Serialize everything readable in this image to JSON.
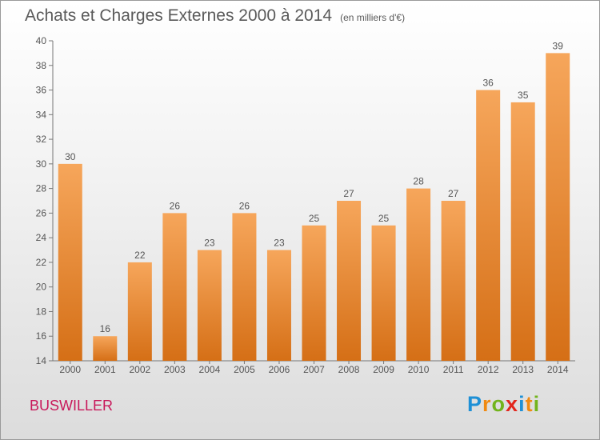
{
  "title": "Achats et Charges Externes 2000 à 2014",
  "subtitle": "(en milliers d'€)",
  "commune": "BUSWILLER",
  "logo": {
    "letters": [
      "P",
      "r",
      "o",
      "x",
      "i",
      "t",
      "i"
    ],
    "colors": [
      "#1e90d6",
      "#f08a12",
      "#72b41c",
      "#e2261c",
      "#1e90d6",
      "#f08a12",
      "#72b41c"
    ]
  },
  "colors": {
    "bar_light": "#f6a65b",
    "bar_dark": "#d56f16",
    "text": "#555555"
  },
  "chart_data": {
    "type": "bar",
    "title": "Achats et Charges Externes 2000 à 2014",
    "subtitle": "(en milliers d'€)",
    "categories": [
      "2000",
      "2001",
      "2002",
      "2003",
      "2004",
      "2005",
      "2006",
      "2007",
      "2008",
      "2009",
      "2010",
      "2011",
      "2012",
      "2013",
      "2014"
    ],
    "values": [
      30,
      16,
      22,
      26,
      23,
      26,
      23,
      25,
      27,
      25,
      28,
      27,
      36,
      35,
      39
    ],
    "ylim": [
      14,
      40
    ],
    "yticks": [
      14,
      16,
      18,
      20,
      22,
      24,
      26,
      28,
      30,
      32,
      34,
      36,
      38,
      40
    ],
    "grid": false,
    "data_labels": true
  }
}
